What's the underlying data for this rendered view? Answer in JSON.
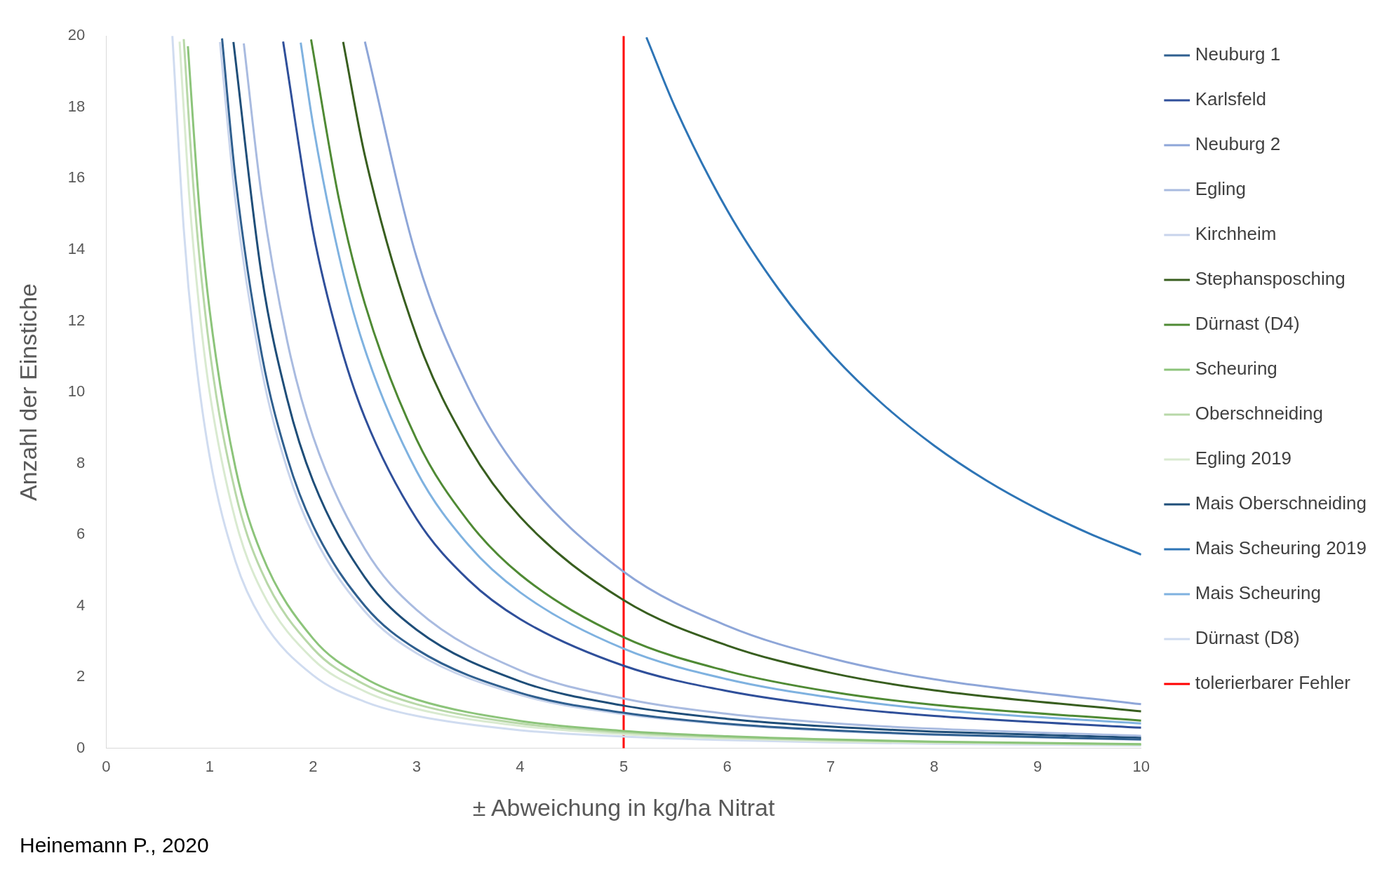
{
  "chart_data": {
    "type": "line",
    "xlabel": "± Abweichung in kg/ha Nitrat",
    "ylabel": "Anzahl der Einstiche",
    "xlim": [
      0,
      10
    ],
    "xticks": [
      0,
      1,
      2,
      3,
      4,
      5,
      6,
      7,
      8,
      9,
      10
    ],
    "ylim": [
      0,
      20
    ],
    "yticks": [
      0,
      2,
      4,
      6,
      8,
      10,
      12,
      14,
      16,
      18,
      20
    ],
    "grid": false,
    "legend": "right",
    "marker": "none",
    "line_style": "solid",
    "annotations": [
      "Heinemann P., 2020"
    ],
    "series": [
      {
        "name": "Neuburg 1",
        "color": "#2f5f8f",
        "x": [
          1.12,
          1.25,
          1.5,
          1.75,
          2,
          2.5,
          3,
          4,
          5,
          6,
          7,
          8,
          10
        ],
        "values": [
          19.93,
          16,
          11.11,
          8.16,
          6.25,
          4,
          2.78,
          1.56,
          1,
          0.69,
          0.51,
          0.39,
          0.25
        ]
      },
      {
        "name": "Karlsfeld",
        "color": "#2f4f9a",
        "x": [
          1.71,
          2,
          2.25,
          2.5,
          3,
          3.5,
          4,
          5,
          6,
          7,
          8,
          10
        ],
        "values": [
          19.84,
          14.5,
          11.46,
          9.28,
          6.44,
          4.73,
          3.63,
          2.32,
          1.61,
          1.18,
          0.91,
          0.58
        ]
      },
      {
        "name": "Neuburg 2",
        "color": "#8ea6d8",
        "x": [
          2.5,
          3,
          3.5,
          4,
          5,
          6,
          7,
          8,
          10
        ],
        "values": [
          19.84,
          13.78,
          10.12,
          7.75,
          4.96,
          3.44,
          2.53,
          1.94,
          1.24
        ]
      },
      {
        "name": "Egling",
        "color": "#a9bbe0",
        "x": [
          1.33,
          1.5,
          1.75,
          2,
          2.5,
          3,
          4,
          5,
          6,
          7,
          8,
          10
        ],
        "values": [
          19.79,
          15.56,
          11.43,
          8.75,
          5.6,
          3.89,
          2.19,
          1.4,
          0.97,
          0.71,
          0.55,
          0.35
        ]
      },
      {
        "name": "Kirchheim",
        "color": "#c8d4ec",
        "x": [
          1.1,
          1.25,
          1.5,
          1.75,
          2,
          2.5,
          3,
          4,
          5,
          6,
          7,
          8,
          10
        ],
        "values": [
          19.83,
          15.36,
          10.67,
          7.84,
          6,
          3.84,
          2.67,
          1.5,
          0.96,
          0.67,
          0.49,
          0.38,
          0.24
        ]
      },
      {
        "name": "Stephansposching",
        "color": "#385e1f",
        "x": [
          2.29,
          2.5,
          3,
          3.5,
          4,
          5,
          6,
          7,
          8,
          10
        ],
        "values": [
          19.83,
          16.64,
          11.56,
          8.49,
          6.5,
          4.16,
          2.89,
          2.12,
          1.63,
          1.04
        ]
      },
      {
        "name": "Dürnast (D4)",
        "color": "#4f8a34",
        "x": [
          1.98,
          2.25,
          2.5,
          3,
          3.5,
          4,
          5,
          6,
          7,
          8,
          10
        ],
        "values": [
          19.9,
          15.41,
          12.48,
          8.67,
          6.37,
          4.88,
          3.12,
          2.17,
          1.59,
          1.22,
          0.78
        ]
      },
      {
        "name": "Scheuring",
        "color": "#8cc47a",
        "x": [
          0.79,
          0.9,
          1,
          1.25,
          1.5,
          2,
          2.5,
          3,
          4,
          5,
          6,
          7,
          8,
          10
        ],
        "values": [
          19.71,
          15.19,
          12.3,
          7.87,
          5.47,
          3.08,
          1.97,
          1.37,
          0.77,
          0.49,
          0.34,
          0.25,
          0.19,
          0.12
        ]
      },
      {
        "name": "Oberschneiding",
        "color": "#b8d8a8",
        "x": [
          0.75,
          0.85,
          1,
          1.25,
          1.5,
          2,
          2.5,
          3,
          4,
          5,
          6,
          7,
          8,
          10
        ],
        "values": [
          19.91,
          15.5,
          11.2,
          7.17,
          4.98,
          2.8,
          1.79,
          1.24,
          0.7,
          0.45,
          0.31,
          0.23,
          0.18,
          0.11
        ]
      },
      {
        "name": "Egling 2019",
        "color": "#d9ead0",
        "x": [
          0.71,
          0.8,
          0.9,
          1,
          1.25,
          1.5,
          2,
          2.5,
          3,
          4,
          5,
          6,
          7,
          8,
          10
        ],
        "values": [
          19.84,
          15.63,
          12.35,
          10,
          6.4,
          4.44,
          2.5,
          1.6,
          1.11,
          0.63,
          0.4,
          0.28,
          0.2,
          0.16,
          0.1
        ]
      },
      {
        "name": "Mais Oberschneiding",
        "color": "#1f4e79",
        "x": [
          1.23,
          1.5,
          1.75,
          2,
          2.5,
          3,
          4,
          5,
          6,
          7,
          8,
          10
        ],
        "values": [
          19.83,
          13.33,
          9.8,
          7.5,
          4.8,
          3.33,
          1.88,
          1.2,
          0.83,
          0.61,
          0.47,
          0.3
        ]
      },
      {
        "name": "Mais Scheuring 2019",
        "color": "#2e75b6",
        "x": [
          5.22,
          5.5,
          6,
          6.5,
          7,
          7.5,
          8,
          8.5,
          9,
          9.5,
          10
        ],
        "values": [
          19.96,
          17.98,
          15.11,
          12.88,
          11.1,
          9.67,
          8.5,
          7.53,
          6.72,
          6.03,
          5.44
        ]
      },
      {
        "name": "Mais Scheuring",
        "color": "#7fb2e0",
        "x": [
          1.88,
          2,
          2.25,
          2.5,
          3,
          3.5,
          4,
          5,
          6,
          7,
          8,
          10
        ],
        "values": [
          19.81,
          17.5,
          13.83,
          11.2,
          7.78,
          5.71,
          4.38,
          2.8,
          1.94,
          1.43,
          1.09,
          0.7
        ]
      },
      {
        "name": "Dürnast (D8)",
        "color": "#d0dcf0",
        "x": [
          0.64,
          0.75,
          0.85,
          1,
          1.25,
          1.5,
          2,
          2.5,
          3,
          4,
          5,
          6,
          7,
          8,
          10
        ],
        "values": [
          20,
          14.58,
          11.35,
          8.2,
          5.25,
          3.64,
          2.05,
          1.31,
          0.91,
          0.51,
          0.33,
          0.23,
          0.17,
          0.13,
          0.08
        ]
      },
      {
        "name": "tolerierbarer Fehler",
        "color": "#ff0000",
        "x": [
          5,
          5
        ],
        "values": [
          0,
          20
        ]
      }
    ]
  }
}
